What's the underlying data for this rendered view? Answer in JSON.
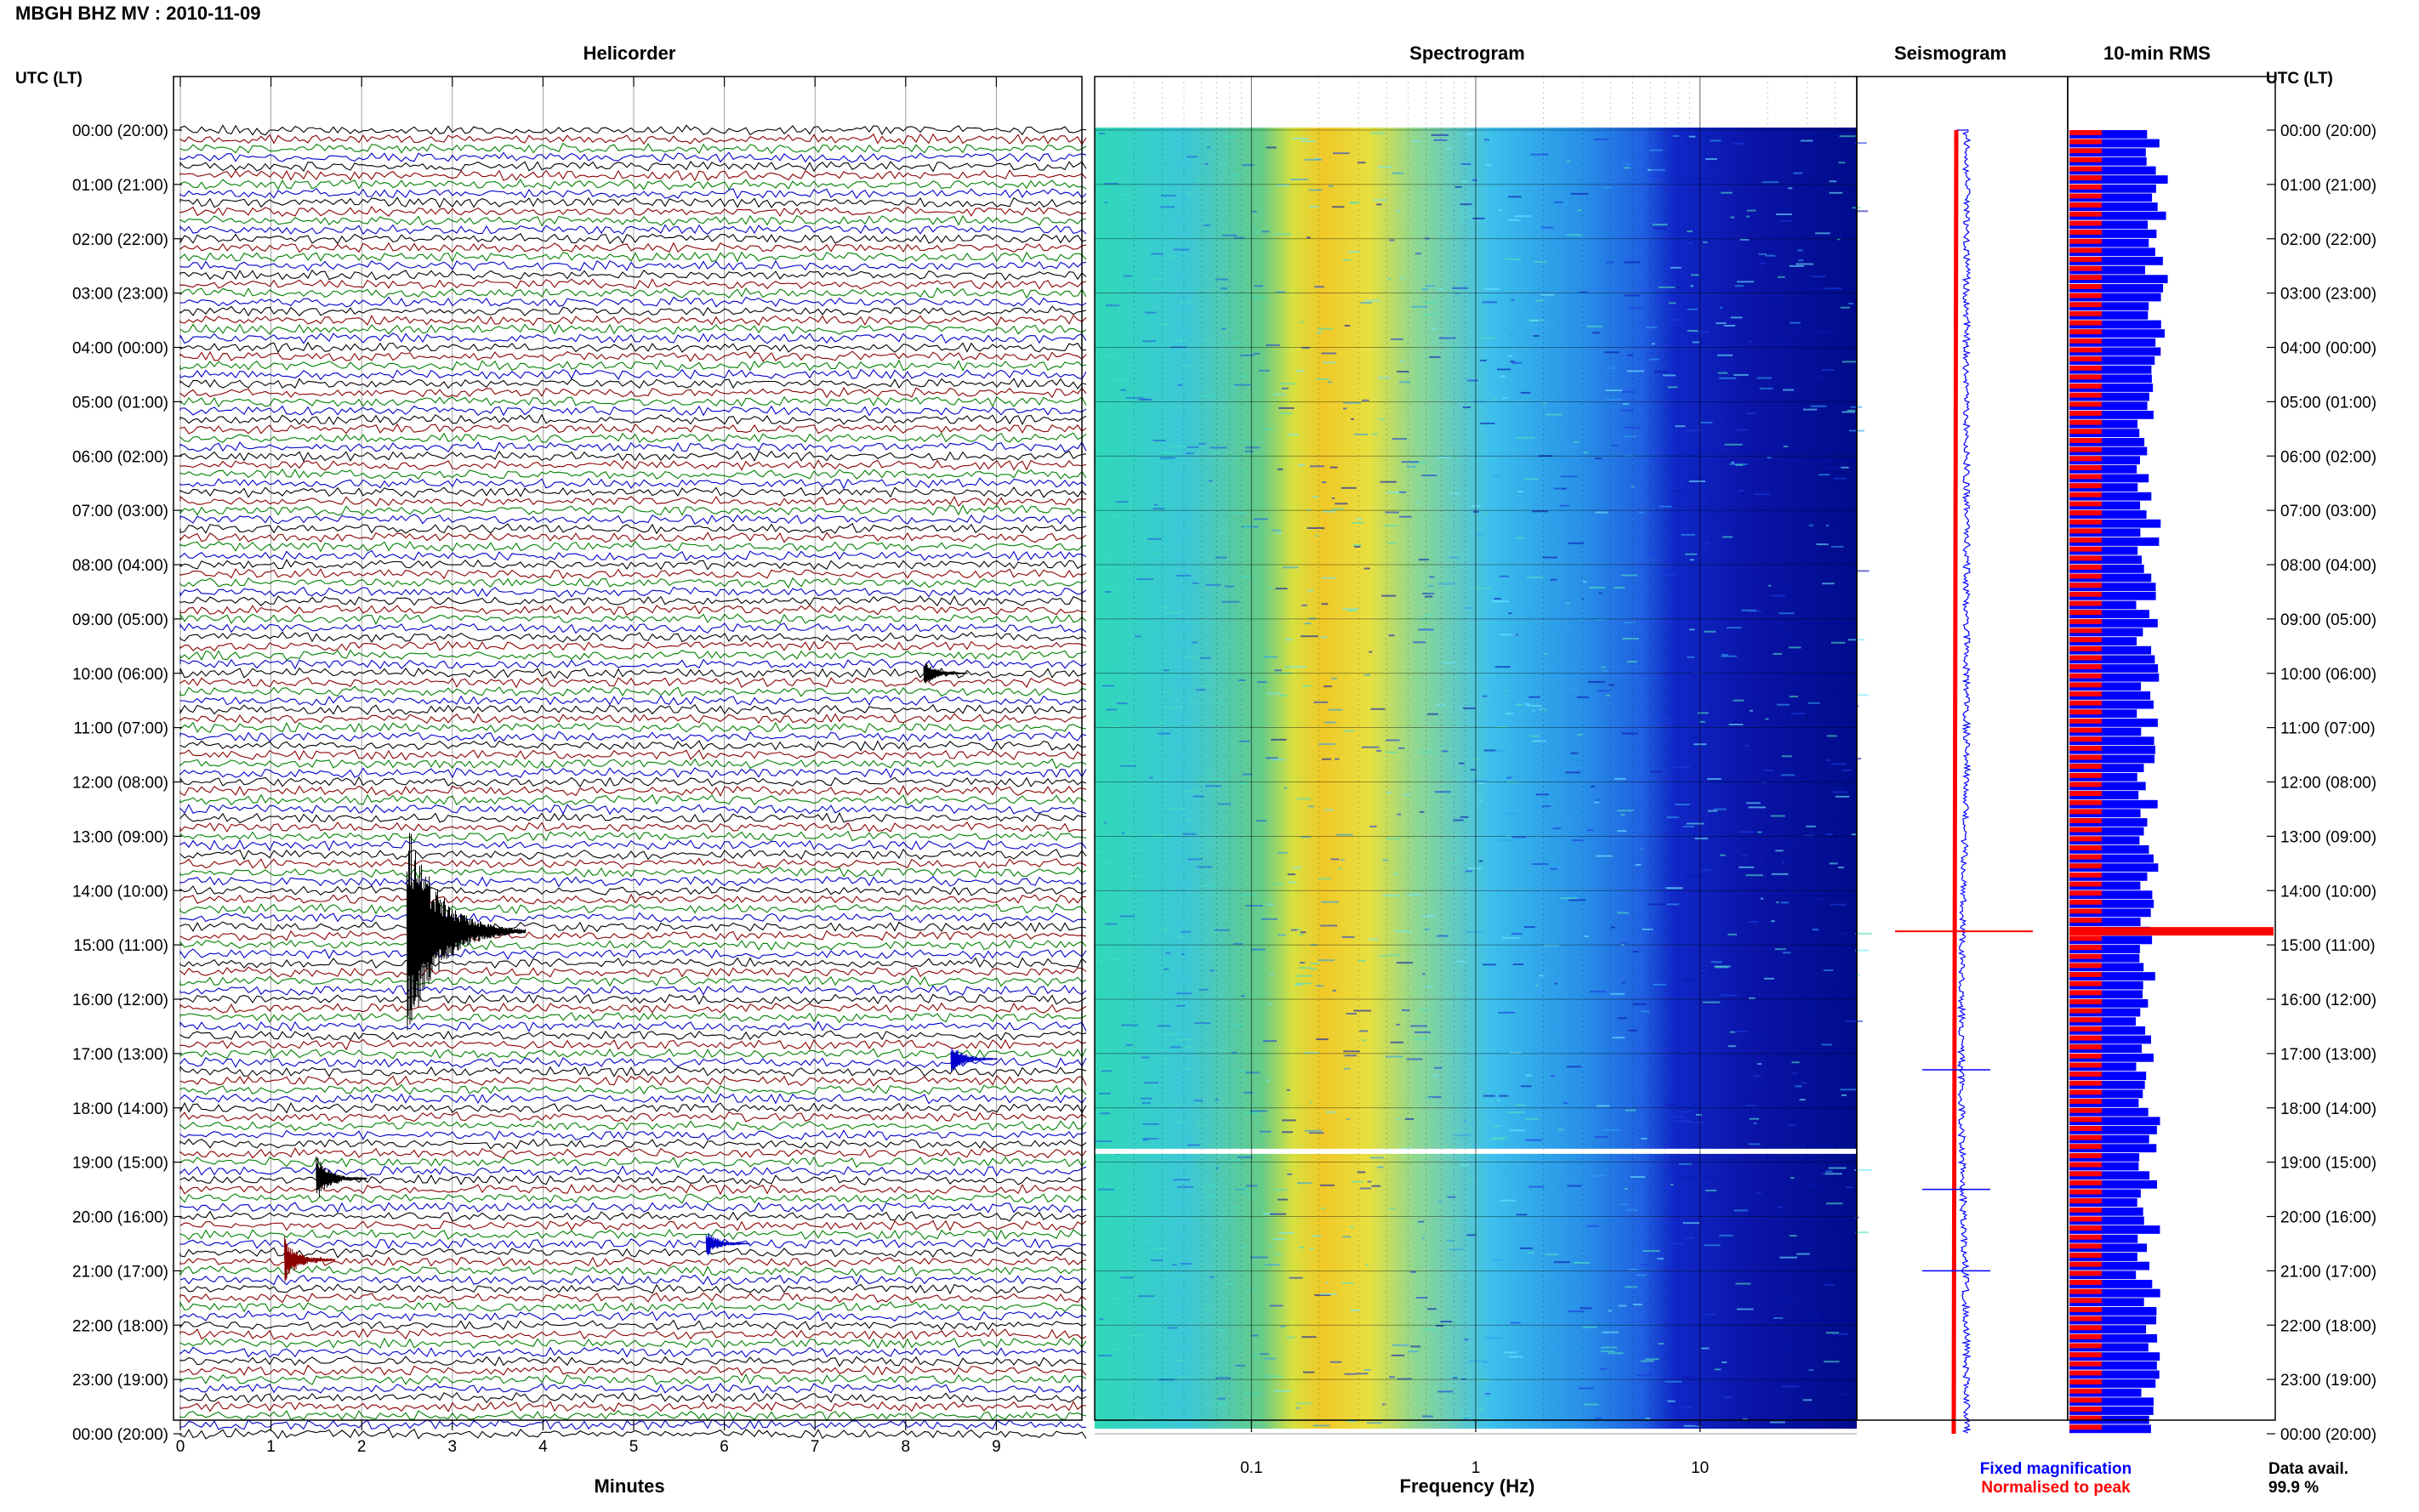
{
  "title": "MBGH BHZ MV : 2010-11-09",
  "time_axis_label": "UTC (LT)",
  "panels": {
    "helicorder": "Helicorder",
    "spectrogram": "Spectrogram",
    "seismogram": "Seismogram",
    "rms": "10-min RMS"
  },
  "chart_data": [
    {
      "type": "line",
      "name": "helicorder",
      "title": "Helicorder",
      "xlabel": "Minutes",
      "xlim": [
        0,
        10
      ],
      "x_ticks": [
        0,
        1,
        2,
        3,
        4,
        5,
        6,
        7,
        8,
        9
      ],
      "rows_per_hour": 6,
      "hours": 24,
      "trace_colors": [
        "#000000",
        "#8b0000",
        "#008000",
        "#0000cc"
      ],
      "y_tick_labels": [
        "00:00 (20:00)",
        "01:00 (21:00)",
        "02:00 (22:00)",
        "03:00 (23:00)",
        "04:00 (00:00)",
        "05:00 (01:00)",
        "06:00 (02:00)",
        "07:00 (03:00)",
        "08:00 (04:00)",
        "09:00 (05:00)",
        "10:00 (06:00)",
        "11:00 (07:00)",
        "12:00 (08:00)",
        "13:00 (09:00)",
        "14:00 (10:00)",
        "15:00 (11:00)",
        "16:00 (12:00)",
        "17:00 (13:00)",
        "18:00 (14:00)",
        "19:00 (15:00)",
        "20:00 (16:00)",
        "21:00 (17:00)",
        "22:00 (18:00)",
        "23:00 (19:00)",
        "00:00 (20:00)"
      ],
      "events": [
        {
          "hour": 14.75,
          "minute": 2.5,
          "magnitude": 10
        },
        {
          "hour": 19.3,
          "minute": 1.5,
          "magnitude": 2
        },
        {
          "hour": 20.8,
          "minute": 1.15,
          "magnitude": 2
        },
        {
          "hour": 17.1,
          "minute": 8.5,
          "magnitude": 1.5
        },
        {
          "hour": 10.0,
          "minute": 8.2,
          "magnitude": 1.2
        },
        {
          "hour": 20.5,
          "minute": 5.8,
          "magnitude": 1.2
        }
      ]
    },
    {
      "type": "heatmap",
      "name": "spectrogram",
      "title": "Spectrogram",
      "xlabel": "Frequency (Hz)",
      "x_scale": "log",
      "xlim": [
        0.02,
        50
      ],
      "x_tick_labels": [
        "0.1",
        "1",
        "10"
      ],
      "x_ticks": [
        0.1,
        1,
        10
      ],
      "peak_frequency_hz": 0.25,
      "gap_hour": 18.8
    },
    {
      "type": "line",
      "name": "seismogram",
      "title": "Seismogram",
      "legend": [
        "Fixed magnification",
        "Normalised to peak"
      ],
      "legend_colors": [
        "#0000ff",
        "#ff0000"
      ],
      "event_hour": 14.75
    },
    {
      "type": "bar",
      "name": "rms",
      "title": "10-min RMS",
      "series_colors": [
        "#ff0000",
        "#0000ff"
      ],
      "bins": 144,
      "peak_hour": 14.75,
      "note_label": "Data avail.",
      "note_value": "99.9 %"
    }
  ]
}
